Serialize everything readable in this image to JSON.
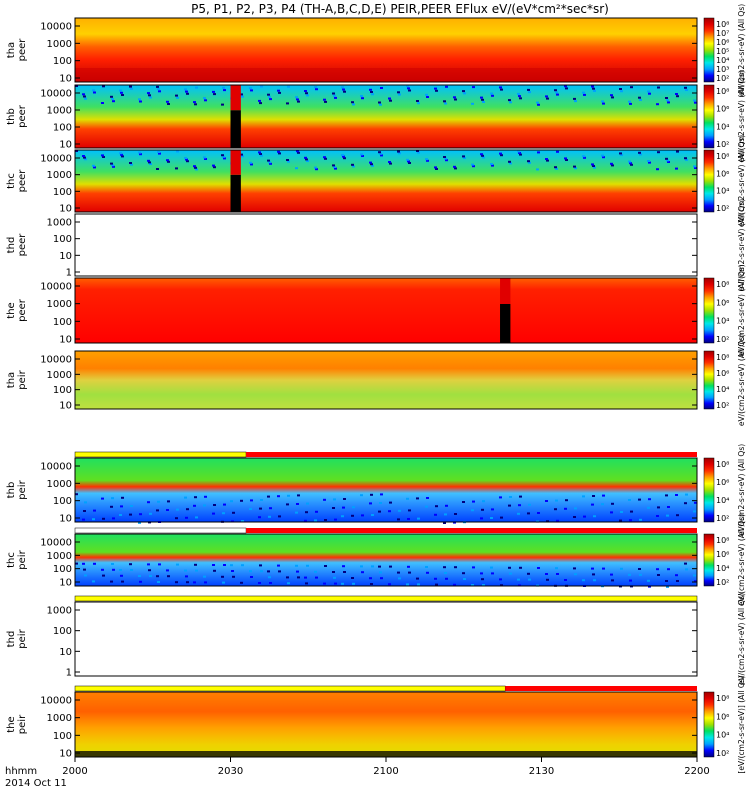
{
  "title": "P5, P1, P2, P3, P4 (TH-A,B,C,D,E) PEIR,PEER EFlux eV/(eV*cm²*sec*sr)",
  "footer": {
    "line1": "hhmm",
    "line2": "2014 Oct 11"
  },
  "chart_data": {
    "type": "heatmap",
    "x_ticks": [
      "2000",
      "2030",
      "2100",
      "2130",
      "2200"
    ],
    "x_range": [
      "20:00",
      "22:00"
    ],
    "y_scale": "log",
    "colorscale": [
      "#000080",
      "#0000ff",
      "#00a0ff",
      "#00e8e8",
      "#00e060",
      "#a0e000",
      "#ffff00",
      "#ffa000",
      "#ff3000",
      "#e00000",
      "#a00000"
    ],
    "colorbar_label": "[eV/(cm2-s-sr-eV)] (All Qs)",
    "panels": [
      {
        "name": "thd_peer_hi",
        "ylabel": [
          "tha",
          "peer"
        ],
        "yticks": [
          "10000",
          "1000",
          "100",
          "10"
        ],
        "y_range": [
          5,
          30000
        ],
        "has_data": true,
        "cb_ticks": [
          "10⁸",
          "10⁷",
          "10⁶",
          "10⁵",
          "10⁴",
          "10³",
          "10²"
        ],
        "cb_label": "eV/(cm2-s-sr-eV) (All Qs)",
        "flag": null,
        "gaps": []
      },
      {
        "name": "thb_peer",
        "ylabel": [
          "thb",
          "peer"
        ],
        "yticks": [
          "10000",
          "1000",
          "100",
          "10"
        ],
        "y_range": [
          5,
          30000
        ],
        "has_data": true,
        "cb_ticks": [
          "10⁸",
          "10⁶",
          "10⁴",
          "10²"
        ],
        "cb_label": "eV/(cm2-s-sr-eV) (All Qs)",
        "flag": null,
        "gaps": [
          [
            2030,
            2032
          ]
        ]
      },
      {
        "name": "thc_peer",
        "ylabel": [
          "thc",
          "peer"
        ],
        "yticks": [
          "10000",
          "1000",
          "100",
          "10"
        ],
        "y_range": [
          5,
          30000
        ],
        "has_data": true,
        "cb_ticks": [
          "10⁸",
          "10⁶",
          "10⁴",
          "10²"
        ],
        "cb_label": "eV/(cm2-s-sr-eV) (All Qs)",
        "flag": null,
        "gaps": [
          [
            2030,
            2032
          ]
        ]
      },
      {
        "name": "thd_peer",
        "ylabel": [
          "thd",
          "peer"
        ],
        "yticks": [
          "1000",
          "100",
          "10",
          "1"
        ],
        "y_range": [
          1,
          10000
        ],
        "has_data": false,
        "cb_ticks": [],
        "cb_label": "eV/(cm2-s-sr-eV) (All Qs)",
        "flag": null,
        "gaps": []
      },
      {
        "name": "the_peer",
        "ylabel": [
          "the",
          "peer"
        ],
        "yticks": [
          "10000",
          "1000",
          "100",
          "10"
        ],
        "y_range": [
          5,
          30000
        ],
        "has_data": true,
        "cb_ticks": [
          "10⁸",
          "10⁶",
          "10⁴",
          "10²"
        ],
        "cb_label": "eV/(cm2-s-sr-eV) (All Qs)",
        "flag": null,
        "gaps": [
          [
            2122,
            2124
          ]
        ]
      },
      {
        "name": "thd_peir_top",
        "ylabel": [
          "tha",
          "peir"
        ],
        "yticks": [
          "10000",
          "1000",
          "100",
          "10"
        ],
        "y_range": [
          5,
          30000
        ],
        "has_data": true,
        "cb_ticks": [
          "10⁸",
          "10⁶",
          "10⁴",
          "10²"
        ],
        "cb_label": "eV/(cm2-s-sr-eV) (All Qs)",
        "flag": null,
        "gaps": []
      },
      {
        "name": "thb_peir",
        "ylabel": [
          "thb",
          "peir"
        ],
        "yticks": [
          "10000",
          "1000",
          "100",
          "10"
        ],
        "y_range": [
          5,
          30000
        ],
        "has_data": true,
        "cb_ticks": [
          "10⁸",
          "10⁶",
          "10⁴",
          "10²"
        ],
        "cb_label": "eV/(cm2-s-sr-eV) (All Qs)",
        "flag": {
          "split": 2033,
          "left": "#ffff00",
          "right": "#ff0000"
        },
        "gaps": []
      },
      {
        "name": "thc_peir",
        "ylabel": [
          "thc",
          "peir"
        ],
        "yticks": [
          "10000",
          "1000",
          "100",
          "10"
        ],
        "y_range": [
          5,
          30000
        ],
        "has_data": true,
        "cb_ticks": [
          "10⁸",
          "10⁶",
          "10⁴",
          "10²"
        ],
        "cb_label": "eV/(cm2-s-sr-eV) (All Qs)",
        "flag": {
          "split": 2033,
          "left": "#ffffff",
          "right": "#ff0000"
        },
        "gaps": []
      },
      {
        "name": "thd_peir",
        "ylabel": [
          "thd",
          "peir"
        ],
        "yticks": [
          "1000",
          "100",
          "10",
          "1"
        ],
        "y_range": [
          1,
          10000
        ],
        "has_data": false,
        "cb_ticks": [],
        "cb_label": "eV/(cm2-s-sr-eV) (All Qs)",
        "flag": {
          "split": 2200,
          "left": "#ffff00",
          "right": "#ffff00"
        },
        "gaps": []
      },
      {
        "name": "the_peir",
        "ylabel": [
          "the",
          "peir"
        ],
        "yticks": [
          "10000",
          "1000",
          "100",
          "10"
        ],
        "y_range": [
          5,
          30000
        ],
        "has_data": true,
        "cb_ticks": [
          "10⁸",
          "10⁶",
          "10⁴",
          "10²"
        ],
        "cb_label": "[eV/(cm2-s-sr-eV)] (All Qs)",
        "flag": {
          "split": 2123,
          "left": "#ffff00",
          "right": "#ff0000"
        },
        "gaps": []
      }
    ]
  }
}
